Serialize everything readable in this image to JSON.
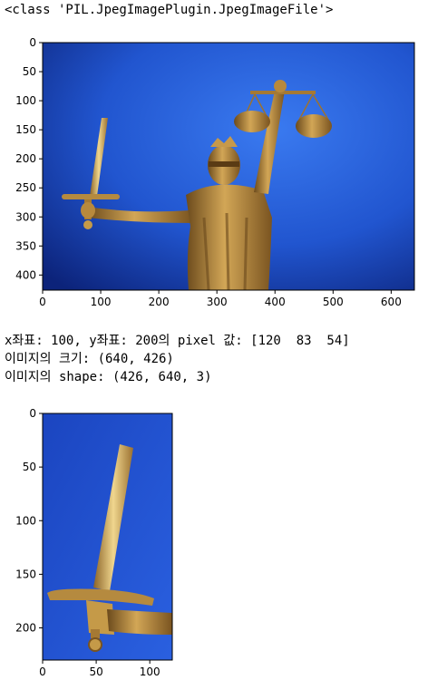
{
  "output": {
    "class_repr": "<class 'PIL.JpegImagePlugin.JpegImageFile'>",
    "pixel_line": "x좌표: 100, y좌표: 200의 pixel 값: [120  83  54]",
    "size_line": "이미지의 크기: (640, 426)",
    "shape_line": "이미지의 shape: (426, 640, 3)"
  },
  "plot1": {
    "image_description": "Statue of Lady Justice holding scales and a sword against blue sky",
    "x_ticks": [
      "0",
      "100",
      "200",
      "300",
      "400",
      "500",
      "600"
    ],
    "y_ticks": [
      "0",
      "50",
      "100",
      "150",
      "200",
      "250",
      "300",
      "350",
      "400"
    ],
    "xlim": [
      0,
      640
    ],
    "ylim": [
      426,
      0
    ]
  },
  "plot2": {
    "image_description": "Cropped view of the statue's sword held in hand",
    "x_ticks": [
      "0",
      "50",
      "100"
    ],
    "y_ticks": [
      "0",
      "50",
      "100",
      "150",
      "200"
    ],
    "xlim": [
      0,
      121
    ],
    "ylim": [
      230,
      0
    ]
  },
  "colors": {
    "sky_dark": "#0d2a86",
    "sky_light": "#2f67e6",
    "bronze_dark": "#6b4a1c",
    "bronze_mid": "#b8893c",
    "bronze_light": "#e6c77a"
  }
}
